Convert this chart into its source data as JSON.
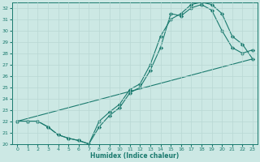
{
  "xlabel": "Humidex (Indice chaleur)",
  "xlim": [
    -0.5,
    23.5
  ],
  "ylim": [
    20,
    32.5
  ],
  "yticks": [
    20,
    21,
    22,
    23,
    24,
    25,
    26,
    27,
    28,
    29,
    30,
    31,
    32
  ],
  "xticks": [
    0,
    1,
    2,
    3,
    4,
    5,
    6,
    7,
    8,
    9,
    10,
    11,
    12,
    13,
    14,
    15,
    16,
    17,
    18,
    19,
    20,
    21,
    22,
    23
  ],
  "bg_color": "#cce8e4",
  "line_color": "#1a7a6e",
  "grid_color": "#e0f0ed",
  "lines": [
    {
      "x": [
        0,
        1,
        2,
        3,
        4,
        5,
        6,
        7,
        8,
        9,
        10,
        11,
        12,
        13,
        14,
        15,
        16,
        17,
        18,
        19,
        20,
        21,
        22,
        23
      ],
      "y": [
        22,
        22,
        22,
        21.5,
        20.8,
        20.5,
        20.3,
        20.0,
        21.5,
        22.5,
        23.2,
        24.5,
        25.0,
        26.5,
        28.5,
        31.5,
        31.3,
        32.0,
        32.3,
        31.8,
        30.0,
        28.5,
        28.0,
        28.3
      ]
    },
    {
      "x": [
        0,
        1,
        2,
        3,
        4,
        5,
        6,
        7,
        8,
        9,
        10,
        11,
        12,
        13,
        14,
        15,
        16,
        17,
        18,
        19,
        20,
        21,
        22,
        23
      ],
      "y": [
        22,
        22,
        22,
        21.5,
        20.8,
        20.5,
        20.3,
        20.0,
        22.0,
        22.8,
        23.5,
        24.8,
        25.3,
        27.0,
        29.5,
        31.0,
        31.5,
        32.3,
        32.5,
        32.3,
        31.5,
        29.5,
        28.8,
        27.5
      ]
    },
    {
      "x": [
        0,
        23
      ],
      "y": [
        22,
        27.5
      ]
    }
  ]
}
